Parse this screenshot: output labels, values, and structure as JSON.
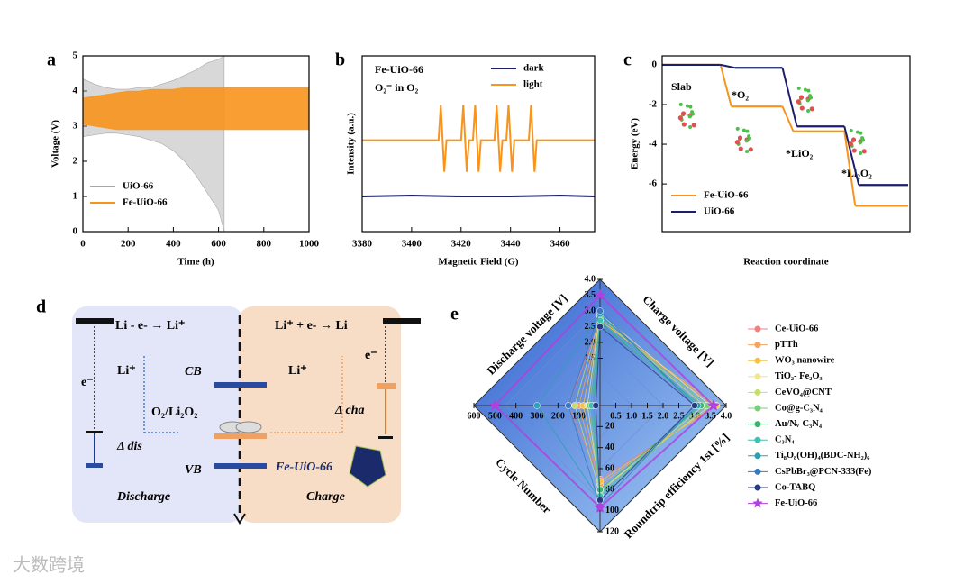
{
  "panel_labels": [
    "a",
    "b",
    "c",
    "d",
    "e"
  ],
  "watermark": "大数跨境",
  "chart_data": [
    {
      "type": "band",
      "xlabel": "Time (h)",
      "ylabel": "Voltage (V)",
      "xlim": [
        0,
        1000
      ],
      "ylim": [
        0,
        5
      ],
      "xticks": [
        0,
        200,
        400,
        600,
        800,
        1000
      ],
      "yticks": [
        0,
        1,
        2,
        3,
        4,
        5
      ],
      "series": [
        {
          "name": "UiO-66",
          "color": "#a8a8a8",
          "x": [
            0,
            50,
            100,
            150,
            200,
            250,
            300,
            350,
            400,
            450,
            500,
            550,
            600,
            625
          ],
          "upper": [
            4.35,
            4.2,
            4.1,
            4.05,
            4.05,
            4.1,
            4.1,
            4.2,
            4.3,
            4.45,
            4.6,
            4.8,
            4.9,
            5.0
          ],
          "lower": [
            2.7,
            2.75,
            2.8,
            2.8,
            2.75,
            2.7,
            2.6,
            2.5,
            2.3,
            2.0,
            1.6,
            1.1,
            0.6,
            0.0
          ]
        },
        {
          "name": "Fe-UiO-66",
          "color": "#f7941d",
          "x": [
            0,
            50,
            100,
            150,
            200,
            250,
            300,
            350,
            400,
            450,
            500,
            550,
            600,
            650,
            700,
            750,
            800,
            850,
            900,
            950,
            1000
          ],
          "upper": [
            3.8,
            3.85,
            3.9,
            3.95,
            4.0,
            4.0,
            4.05,
            4.05,
            4.05,
            4.1,
            4.1,
            4.1,
            4.1,
            4.1,
            4.1,
            4.1,
            4.1,
            4.1,
            4.1,
            4.1,
            4.1
          ],
          "lower": [
            3.05,
            3.0,
            2.95,
            2.9,
            2.9,
            2.9,
            2.9,
            2.9,
            2.9,
            2.9,
            2.9,
            2.9,
            2.9,
            2.9,
            2.9,
            2.9,
            2.9,
            2.9,
            2.9,
            2.9,
            2.9
          ]
        }
      ]
    },
    {
      "type": "line",
      "xlabel": "Magnetic Field (G)",
      "ylabel": "Intensity (a.u.)",
      "annotations": [
        "Fe-UiO-66",
        "O₂⁻ in O₂"
      ],
      "xlim": [
        3380,
        3474
      ],
      "ylim": [
        0,
        1
      ],
      "xticks": [
        3380,
        3400,
        3420,
        3440,
        3460
      ],
      "series": [
        {
          "name": "dark",
          "color": "#1b1f6b",
          "x": [
            3380,
            3400,
            3420,
            3440,
            3460,
            3474
          ],
          "values": [
            0.2,
            0.205,
            0.2,
            0.2,
            0.205,
            0.2
          ]
        },
        {
          "name": "light",
          "color": "#f7941d",
          "x": [
            3380,
            3410.9,
            3411.8,
            3413.2,
            3414.1,
            3420.0,
            3420.9,
            3422.3,
            3423.2,
            3424.8,
            3425.7,
            3427.1,
            3428.0,
            3433.5,
            3434.4,
            3435.8,
            3436.7,
            3438.3,
            3439.2,
            3440.6,
            3441.5,
            3447.4,
            3448.3,
            3449.7,
            3450.6,
            3474
          ],
          "values": [
            0.52,
            0.52,
            0.72,
            0.34,
            0.52,
            0.52,
            0.72,
            0.34,
            0.52,
            0.52,
            0.72,
            0.34,
            0.52,
            0.52,
            0.72,
            0.34,
            0.52,
            0.52,
            0.72,
            0.34,
            0.52,
            0.52,
            0.72,
            0.34,
            0.52,
            0.52
          ]
        }
      ]
    },
    {
      "type": "step",
      "xlabel": "Reaction coordinate",
      "ylabel": "Energy (eV)",
      "ylim": [
        -8.4,
        0.45
      ],
      "yticks": [
        0,
        -2,
        -4,
        -6
      ],
      "categories": [
        "Slab",
        "*O₂",
        "*LiO₂",
        "*Li₂O₂"
      ],
      "series": [
        {
          "name": "Fe-UiO-66",
          "color": "#f7941d",
          "values": [
            0,
            -2.1,
            -3.35,
            -7.1
          ]
        },
        {
          "name": "UiO-66",
          "color": "#1b1f6b",
          "values": [
            0,
            -0.15,
            -3.1,
            -6.05
          ]
        }
      ]
    },
    {
      "type": "radar",
      "axes": [
        {
          "name": "Discharge voltage [V]",
          "lim": [
            0,
            4
          ],
          "ticks": [
            1.5,
            {
              "value": 2,
              "label": "2.0"
            },
            2.5,
            {
              "value": 3,
              "label": "3.0"
            },
            3.5,
            {
              "value": 4,
              "label": "4.0"
            }
          ]
        },
        {
          "name": "Charge voltage [V]",
          "lim": [
            0,
            4
          ],
          "ticks": [
            0.5,
            {
              "value": 1,
              "label": "1.0"
            },
            1.5,
            {
              "value": 2,
              "label": "2.0"
            },
            2.5,
            {
              "value": 3,
              "label": "3.0"
            },
            3.5,
            {
              "value": 4,
              "label": "4.0"
            }
          ]
        },
        {
          "name": "Roundtrip efficiency 1st [%]",
          "lim": [
            0,
            120
          ],
          "ticks": [
            20,
            40,
            60,
            80,
            100,
            120
          ]
        },
        {
          "name": "Cycle Number",
          "lim": [
            0,
            600
          ],
          "ticks": [
            100,
            200,
            300,
            400,
            500,
            600
          ]
        }
      ],
      "series": [
        {
          "name": "Ce-UiO-66",
          "color": "#f08080",
          "values": [
            2.7,
            3.7,
            70,
            150
          ]
        },
        {
          "name": "pTTh",
          "color": "#f4a460",
          "values": [
            2.7,
            3.6,
            75,
            100
          ]
        },
        {
          "name": "WO₃ nanowire",
          "color": "#f5c242",
          "values": [
            2.7,
            3.7,
            72,
            80
          ]
        },
        {
          "name": "TiO₂- Fe₂O₃",
          "color": "#f0e68c",
          "values": [
            2.9,
            3.5,
            80,
            60
          ]
        },
        {
          "name": "CeVO₄@CNT",
          "color": "#c5e065",
          "values": [
            2.8,
            3.3,
            82,
            120
          ]
        },
        {
          "name": "Co@g-C₃N₄",
          "color": "#7ccd7c",
          "values": [
            2.8,
            3.4,
            85,
            50
          ]
        },
        {
          "name": "Au/Nᵥ-C₃N₄",
          "color": "#3cb371",
          "values": [
            2.6,
            3.2,
            80,
            30
          ]
        },
        {
          "name": "C₃N₄",
          "color": "#40c0b0",
          "values": [
            2.7,
            3.1,
            86,
            40
          ]
        },
        {
          "name": "Ti₈O₈(OH)₄(BDC-NH₂)₆",
          "color": "#2aa0b0",
          "values": [
            2.9,
            3.1,
            90,
            300
          ]
        },
        {
          "name": "CsPbBr₃@PCN-333(Fe)",
          "color": "#3a78c0",
          "values": [
            3.0,
            3.0,
            95,
            150
          ]
        },
        {
          "name": "Co-TABQ",
          "color": "#2a3a80",
          "values": [
            2.5,
            3.0,
            90,
            20
          ]
        },
        {
          "name": "Fe-UiO-66",
          "color": "#b040e0",
          "marker": "star",
          "values": [
            3.5,
            3.6,
            97,
            500
          ]
        }
      ]
    }
  ],
  "diagram": {
    "discharge_reaction": "Li - e- → Li⁺",
    "charge_reaction": "Li⁺ + e- → Li",
    "electron_left": "e⁻",
    "li_left": "Li⁺",
    "cb": "CB",
    "redox": "O₂/Li₂O₂",
    "delta_dis": "Δ dis",
    "vb": "VB",
    "catalyst": "Fe-UiO-66",
    "discharge": "Discharge",
    "li_right": "Li⁺",
    "electron_right": "e⁻",
    "delta_cha": "Δ cha",
    "charge": "Charge"
  }
}
